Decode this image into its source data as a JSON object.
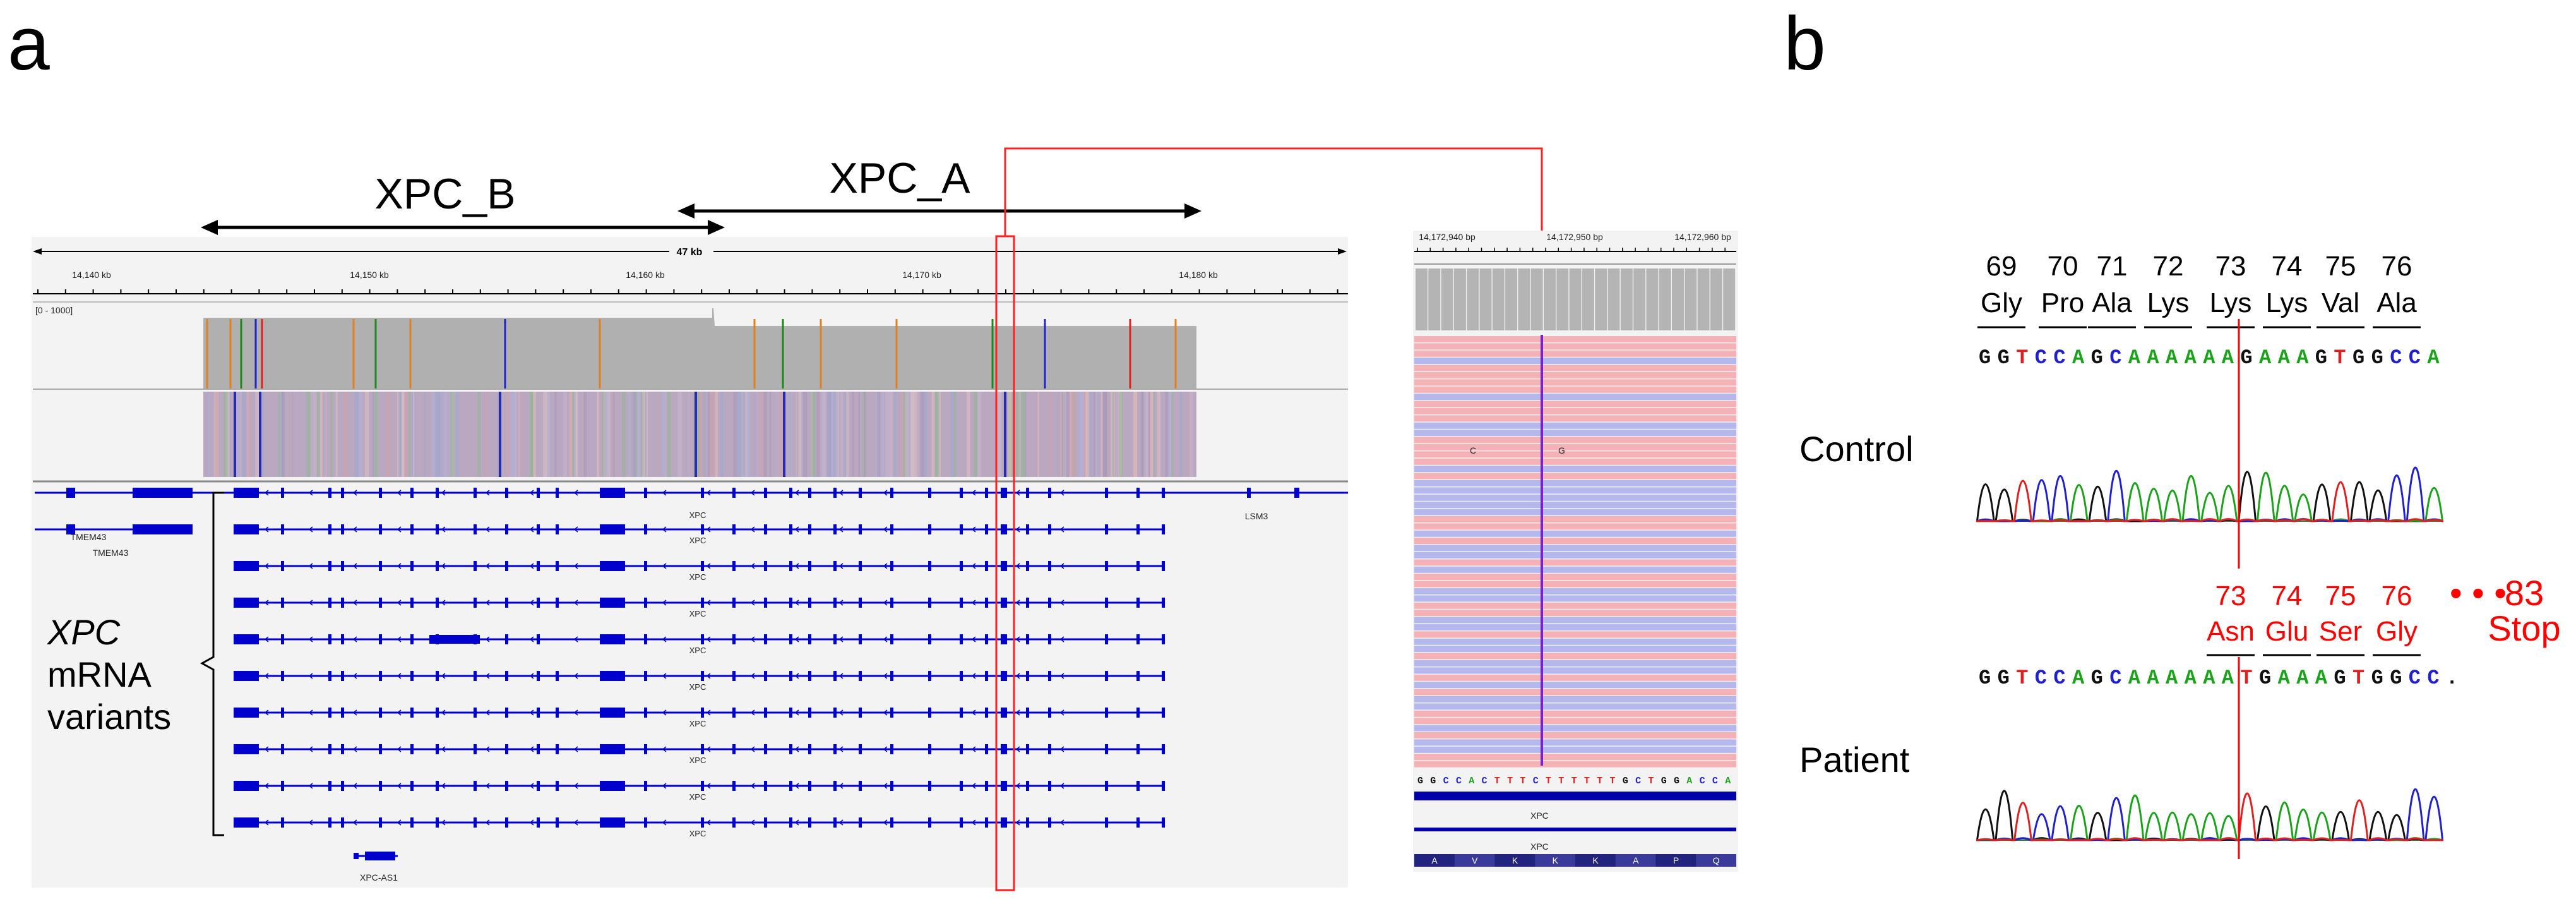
{
  "panel_a": {
    "letter": "a",
    "region_labels": {
      "xpc_b": "XPC_B",
      "xpc_a": "XPC_A"
    },
    "span_label": "47 kb",
    "ruler_ticks": [
      "14,140 kb",
      "14,150 kb",
      "14,160 kb",
      "14,170 kb",
      "14,180 kb"
    ],
    "coverage_range": "[0 - 1000]",
    "gene_labels": {
      "tmem43": "TMEM43",
      "lsm3": "LSM3",
      "xpc": "XPC",
      "xpc_as1": "XPC-AS1"
    },
    "variants_label": {
      "gene": "XPC",
      "line1": "mRNA",
      "line2": "variants"
    },
    "zoom": {
      "ticks": [
        "14,172,940 bp",
        "14,172,950 bp",
        "14,172,960 bp"
      ],
      "reference_sequence": "GGCCACTTTCTTTTTTGCTGGACCA",
      "gene_label": "XPC",
      "amino_acids": [
        "A",
        "V",
        "K",
        "K",
        "K",
        "A",
        "P",
        "Q"
      ],
      "read_letters": {
        "left": "C",
        "right": "G"
      }
    }
  },
  "panel_b": {
    "letter": "b",
    "codons": [
      {
        "num": "69",
        "aa": "Gly"
      },
      {
        "num": "70",
        "aa": "Pro"
      },
      {
        "num": "71",
        "aa": "Ala"
      },
      {
        "num": "72",
        "aa": "Lys"
      },
      {
        "num": "73",
        "aa": "Lys"
      },
      {
        "num": "74",
        "aa": "Lys"
      },
      {
        "num": "75",
        "aa": "Val"
      },
      {
        "num": "76",
        "aa": "Ala"
      }
    ],
    "mutant_codons": [
      {
        "num": "73",
        "aa": "Asn"
      },
      {
        "num": "74",
        "aa": "Glu"
      },
      {
        "num": "75",
        "aa": "Ser"
      },
      {
        "num": "76",
        "aa": "Gly"
      }
    ],
    "dots": "• • •",
    "stop": {
      "num": "83",
      "aa": "Stop"
    },
    "control_label": "Control",
    "patient_label": "Patient",
    "control_sequence": "GGTCCAGCAAAAAAGAAAGTGGCCA",
    "patient_sequence": "GGTCCAGCAAAAAATGAAAGTGGCC.",
    "colors": {
      "A": "#1aa31a",
      "C": "#2020d0",
      "G": "#111111",
      "T": "#e02020",
      "highlight": "#ff0000"
    }
  }
}
